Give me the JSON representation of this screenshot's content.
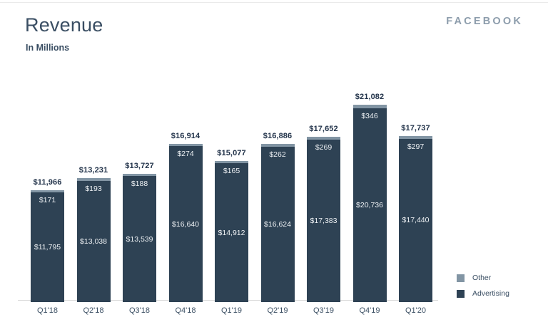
{
  "header": {
    "title": "Revenue",
    "subtitle": "In Millions",
    "brand": "FACEBOOK"
  },
  "legend": {
    "items": [
      {
        "label": "Other",
        "color": "#8295a4"
      },
      {
        "label": "Advertising",
        "color": "#2e4254"
      }
    ]
  },
  "chart_data": {
    "type": "bar",
    "stacked": true,
    "title": "Revenue",
    "subtitle": "In Millions",
    "value_prefix": "$",
    "categories": [
      "Q1'18",
      "Q2'18",
      "Q3'18",
      "Q4'18",
      "Q1'19",
      "Q2'19",
      "Q3'19",
      "Q4'19",
      "Q1'20"
    ],
    "series": [
      {
        "name": "Advertising",
        "color": "#2e4254",
        "values": [
          11795,
          13038,
          13539,
          16640,
          14912,
          16624,
          17383,
          20736,
          17440
        ]
      },
      {
        "name": "Other",
        "color": "#8295a4",
        "values": [
          171,
          193,
          188,
          274,
          165,
          262,
          269,
          346,
          297
        ]
      }
    ],
    "totals": [
      11966,
      13231,
      13727,
      16914,
      15077,
      16886,
      17652,
      21082,
      17737
    ],
    "ylim": [
      0,
      21082
    ],
    "grid": false,
    "legend_position": "bottom-right",
    "axis": {
      "x_line": true,
      "y_axis_visible": false
    }
  }
}
